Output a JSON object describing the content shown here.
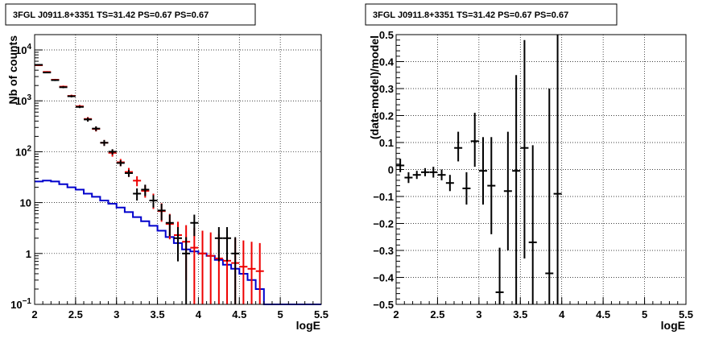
{
  "chart_data": [
    {
      "type": "step-histogram-with-errorbars",
      "title": "3FGL J0911.8+3351 TS=31.42 PS=0.67 PS=0.67",
      "xlabel": "logE",
      "ylabel": "Nb of counts",
      "xlim": [
        2,
        5.5
      ],
      "ylim": [
        0.1,
        20000
      ],
      "yscale": "log",
      "grid": true,
      "x_ticks": [
        "2",
        "2.5",
        "3",
        "3.5",
        "4",
        "4.5",
        "5",
        "5.5"
      ],
      "y_ticks": [
        {
          "label": "10",
          "sup": "4",
          "value": 10000
        },
        {
          "label": "10",
          "sup": "3",
          "value": 1000
        },
        {
          "label": "10",
          "sup": "2",
          "value": 100
        },
        {
          "label": "10",
          "sup": "",
          "value": 10
        },
        {
          "label": "1",
          "sup": "",
          "value": 1
        },
        {
          "label": "10",
          "sup": "−1",
          "value": 0.1
        }
      ],
      "bin_edges": [
        2.0,
        2.1,
        2.2,
        2.3,
        2.4,
        2.5,
        2.6,
        2.7,
        2.8,
        2.9,
        3.0,
        3.1,
        3.2,
        3.3,
        3.4,
        3.5,
        3.6,
        3.7,
        3.8,
        3.9,
        4.0,
        4.1,
        4.2,
        4.3,
        4.4,
        4.5,
        4.6,
        4.7,
        4.8,
        4.9,
        5.0,
        5.1,
        5.2,
        5.3,
        5.4,
        5.5
      ],
      "series": [
        {
          "role": "model-total",
          "color": "#ee0000",
          "style": "markers-with-errorbars",
          "x": [
            2.05,
            2.15,
            2.25,
            2.35,
            2.45,
            2.55,
            2.65,
            2.75,
            2.85,
            2.95,
            3.05,
            3.15,
            3.25,
            3.35,
            3.45,
            3.55,
            3.65,
            3.75,
            3.85,
            3.95,
            4.05,
            4.15,
            4.25,
            4.35,
            4.45,
            4.55,
            4.65,
            4.75
          ],
          "y": [
            5000,
            3700,
            2600,
            1900,
            1250,
            780,
            440,
            280,
            150,
            95,
            62,
            40,
            27,
            17,
            11,
            6.8,
            3.8,
            2.3,
            1.7,
            1.3,
            1.0,
            0.9,
            0.8,
            0.72,
            0.65,
            0.55,
            0.5,
            0.45
          ],
          "ylow": [
            4860,
            3580,
            2500,
            1810,
            1180,
            730,
            400,
            250,
            130,
            80,
            52,
            32,
            21,
            12.5,
            7.5,
            4.2,
            1.9,
            0.8,
            0.3,
            0.1,
            0.1,
            0.1,
            0.1,
            0.1,
            0.1,
            0.1,
            0.1,
            0.1
          ],
          "yhigh": [
            5140,
            3820,
            2700,
            1990,
            1320,
            830,
            480,
            310,
            170,
            110,
            72,
            48,
            33,
            22,
            15,
            9.7,
            6.0,
            4.2,
            3.6,
            3.2,
            2.8,
            2.6,
            2.4,
            2.2,
            2.0,
            1.8,
            1.7,
            1.6
          ]
        },
        {
          "role": "data",
          "color": "#000000",
          "style": "markers-with-errorbars",
          "x": [
            2.05,
            2.15,
            2.25,
            2.35,
            2.45,
            2.55,
            2.65,
            2.75,
            2.85,
            2.95,
            3.05,
            3.15,
            3.25,
            3.35,
            3.45,
            3.55,
            3.65,
            3.75,
            3.85,
            3.95,
            4.25,
            4.35,
            4.45
          ],
          "y": [
            5100,
            3600,
            2550,
            1850,
            1230,
            760,
            430,
            285,
            150,
            100,
            60,
            38,
            15,
            18,
            11,
            7,
            4,
            2,
            1,
            4,
            2,
            2,
            1
          ],
          "ylow": [
            4960,
            3480,
            2450,
            1770,
            1170,
            720,
            390,
            255,
            130,
            88,
            52,
            32,
            11,
            13.5,
            8,
            4.5,
            2.2,
            0.7,
            0.1,
            2.2,
            0.7,
            0.7,
            0.1
          ],
          "yhigh": [
            5240,
            3720,
            2650,
            1930,
            1290,
            800,
            470,
            315,
            170,
            112,
            68,
            44,
            19,
            22.5,
            14,
            9.5,
            5.8,
            3.3,
            2.1,
            5.8,
            3.3,
            3.3,
            2.1
          ]
        },
        {
          "role": "background-model",
          "color": "#0000cc",
          "style": "step",
          "values": [
            26,
            27,
            26,
            23,
            20,
            18,
            15,
            13,
            11,
            9.5,
            8.0,
            6.5,
            5.2,
            4.3,
            3.5,
            2.8,
            2.1,
            1.6,
            1.2,
            1.1,
            1.0,
            0.9,
            0.75,
            0.6,
            0.5,
            0.4,
            0.3,
            0.2,
            0.1,
            0.1,
            0.1,
            0.1,
            0.1,
            0.1,
            0.1
          ]
        }
      ]
    },
    {
      "type": "scatter-with-errorbars",
      "title": "3FGL J0911.8+3351 TS=31.42 PS=0.67 PS=0.67",
      "xlabel": "logE",
      "ylabel": "(data-model)/model",
      "xlim": [
        2,
        5.5
      ],
      "ylim": [
        -0.5,
        0.5
      ],
      "yscale": "linear",
      "grid": true,
      "x_ticks": [
        "2",
        "2.5",
        "3",
        "3.5",
        "4",
        "4.5",
        "5",
        "5.5"
      ],
      "y_ticks": [
        {
          "label": "0.5",
          "value": 0.5
        },
        {
          "label": "0.4",
          "value": 0.4
        },
        {
          "label": "0.3",
          "value": 0.3
        },
        {
          "label": "0.2",
          "value": 0.2
        },
        {
          "label": "0.1",
          "value": 0.1
        },
        {
          "label": "0",
          "value": 0
        },
        {
          "label": "−0.1",
          "value": -0.1
        },
        {
          "label": "−0.2",
          "value": -0.2
        },
        {
          "label": "−0.3",
          "value": -0.3
        },
        {
          "label": "−0.4",
          "value": -0.4
        },
        {
          "label": "−0.5",
          "value": -0.5
        }
      ],
      "series": [
        {
          "role": "residuals",
          "color": "#000000",
          "x": [
            2.05,
            2.15,
            2.25,
            2.35,
            2.45,
            2.55,
            2.65,
            2.75,
            2.85,
            2.95,
            3.05,
            3.15,
            3.25,
            3.35,
            3.45,
            3.55,
            3.65,
            3.85,
            3.95
          ],
          "y": [
            0.015,
            -0.03,
            -0.02,
            -0.01,
            -0.01,
            -0.02,
            -0.05,
            0.08,
            -0.07,
            0.105,
            -0.005,
            -0.06,
            -0.455,
            -0.08,
            -0.005,
            0.08,
            -0.27,
            -0.385,
            -0.09
          ],
          "ylow": [
            -0.01,
            -0.05,
            -0.035,
            -0.025,
            -0.03,
            -0.04,
            -0.08,
            0.03,
            -0.13,
            0.01,
            -0.13,
            -0.24,
            -0.5,
            -0.3,
            -0.5,
            -0.33,
            -0.5,
            -0.5,
            -0.5
          ],
          "yhigh": [
            0.04,
            -0.01,
            -0.005,
            0.005,
            0.01,
            0.0,
            -0.02,
            0.14,
            -0.01,
            0.21,
            0.12,
            0.12,
            -0.29,
            0.14,
            0.35,
            0.48,
            0.09,
            0.3,
            0.5
          ]
        }
      ]
    }
  ]
}
